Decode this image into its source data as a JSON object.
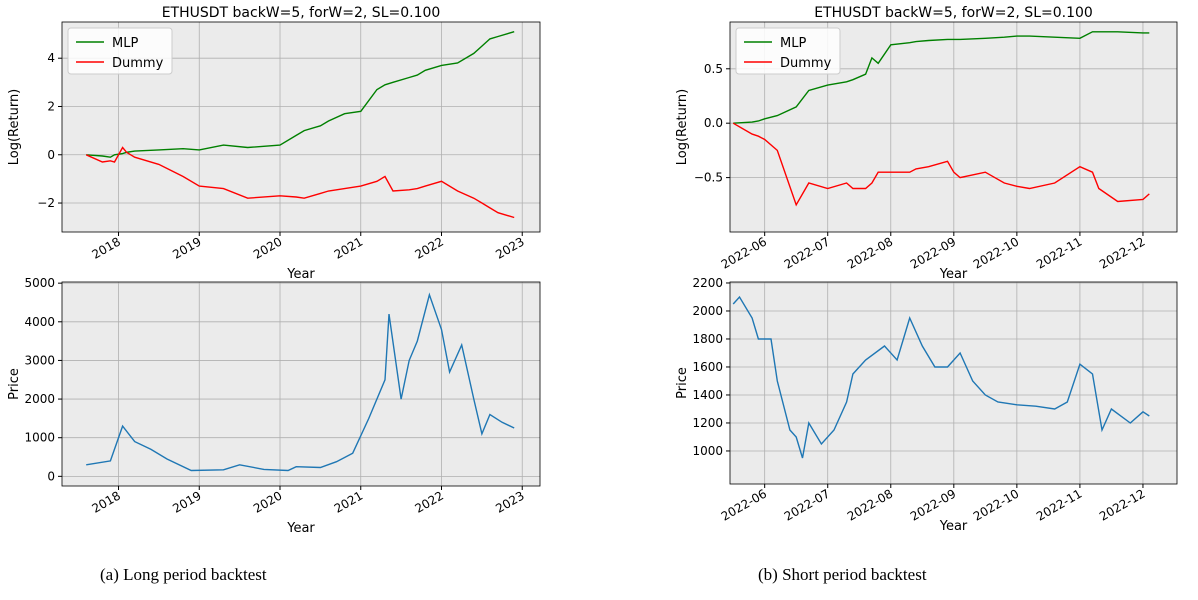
{
  "chart_data": [
    {
      "type": "line",
      "title": "ETHUSDT backW=5, forW=2, SL=0.100",
      "xlabel": "Year",
      "ylabel": "Log(Return)",
      "x": [
        2017.6,
        2017.8,
        2017.9,
        2017.95,
        2018.05,
        2018.1,
        2018.2,
        2018.5,
        2018.8,
        2019,
        2019.3,
        2019.6,
        2020,
        2020.2,
        2020.3,
        2020.5,
        2020.6,
        2020.8,
        2021,
        2021.2,
        2021.3,
        2021.4,
        2021.6,
        2021.7,
        2021.8,
        2022,
        2022.2,
        2022.4,
        2022.5,
        2022.6,
        2022.7,
        2022.9
      ],
      "series": [
        {
          "name": "MLP",
          "color": "#008000",
          "values": [
            0,
            -0.05,
            -0.1,
            0,
            0.05,
            0.1,
            0.15,
            0.2,
            0.25,
            0.2,
            0.4,
            0.3,
            0.4,
            0.8,
            1.0,
            1.2,
            1.4,
            1.7,
            1.8,
            2.7,
            2.9,
            3.0,
            3.2,
            3.3,
            3.5,
            3.7,
            3.8,
            4.2,
            4.5,
            4.8,
            4.9,
            5.1
          ]
        },
        {
          "name": "Dummy",
          "color": "#ff0000",
          "values": [
            0,
            -0.3,
            -0.25,
            -0.3,
            0.3,
            0.1,
            -0.1,
            -0.4,
            -0.9,
            -1.3,
            -1.4,
            -1.8,
            -1.7,
            -1.75,
            -1.8,
            -1.6,
            -1.5,
            -1.4,
            -1.3,
            -1.1,
            -0.9,
            -1.5,
            -1.45,
            -1.4,
            -1.3,
            -1.1,
            -1.5,
            -1.8,
            -2.0,
            -2.2,
            -2.4,
            -2.6
          ]
        }
      ],
      "xlim": [
        2017.3,
        2023.22
      ],
      "ylim": [
        -3.2,
        5.5
      ],
      "xticks": [
        2018,
        2019,
        2020,
        2021,
        2022,
        2023
      ],
      "yticks": [
        {
          "value": -2,
          "label": "−2"
        },
        0,
        2,
        4
      ],
      "grid": true,
      "legend": "upper-left"
    },
    {
      "type": "line",
      "xlabel": "Year",
      "ylabel": "Price",
      "x": [
        2017.6,
        2017.9,
        2018.05,
        2018.2,
        2018.4,
        2018.6,
        2018.9,
        2019.3,
        2019.5,
        2019.8,
        2020.1,
        2020.2,
        2020.5,
        2020.7,
        2020.9,
        2021.1,
        2021.3,
        2021.35,
        2021.5,
        2021.6,
        2021.7,
        2021.85,
        2022,
        2022.1,
        2022.25,
        2022.4,
        2022.5,
        2022.6,
        2022.75,
        2022.9
      ],
      "series": [
        {
          "name": "Price",
          "color": "#1f77b4",
          "values": [
            300,
            400,
            1300,
            900,
            700,
            450,
            150,
            170,
            300,
            180,
            150,
            250,
            230,
            380,
            600,
            1500,
            2500,
            4200,
            2000,
            3000,
            3500,
            4700,
            3800,
            2700,
            3400,
            2000,
            1100,
            1600,
            1400,
            1250
          ]
        }
      ],
      "xlim": [
        2017.3,
        2023.22
      ],
      "ylim": [
        -250,
        5030
      ],
      "xticks": [
        2018,
        2019,
        2020,
        2021,
        2022,
        2023
      ],
      "yticks": [
        0,
        1000,
        2000,
        3000,
        4000,
        5000
      ],
      "grid": true
    },
    {
      "type": "line",
      "title": "ETHUSDT backW=5, forW=2, SL=0.100",
      "xlabel": "Year",
      "ylabel": "Log(Return)",
      "x": [
        5.5,
        5.8,
        5.9,
        6.0,
        6.2,
        6.5,
        6.7,
        7.0,
        7.3,
        7.4,
        7.6,
        7.7,
        7.8,
        8.0,
        8.3,
        8.4,
        8.6,
        8.9,
        9.0,
        9.1,
        9.5,
        9.8,
        10.0,
        10.2,
        10.6,
        11.0,
        11.2,
        11.3,
        11.6,
        12.0,
        12.1
      ],
      "series": [
        {
          "name": "MLP",
          "color": "#008000",
          "values": [
            0,
            0.01,
            0.02,
            0.04,
            0.07,
            0.15,
            0.3,
            0.35,
            0.38,
            0.4,
            0.45,
            0.6,
            0.55,
            0.72,
            0.74,
            0.75,
            0.76,
            0.77,
            0.77,
            0.77,
            0.78,
            0.79,
            0.8,
            0.8,
            0.79,
            0.78,
            0.84,
            0.84,
            0.84,
            0.83,
            0.83
          ]
        },
        {
          "name": "Dummy",
          "color": "#ff0000",
          "values": [
            0,
            -0.1,
            -0.12,
            -0.15,
            -0.25,
            -0.75,
            -0.55,
            -0.6,
            -0.55,
            -0.6,
            -0.6,
            -0.55,
            -0.45,
            -0.45,
            -0.45,
            -0.42,
            -0.4,
            -0.35,
            -0.45,
            -0.5,
            -0.45,
            -0.55,
            -0.58,
            -0.6,
            -0.55,
            -0.4,
            -0.45,
            -0.6,
            -0.72,
            -0.7,
            -0.65
          ]
        }
      ],
      "xlim": [
        5.45,
        12.54
      ],
      "ylim": [
        -1.0,
        0.93
      ],
      "xticks": [
        {
          "value": 6,
          "label": "2022-06"
        },
        {
          "value": 7,
          "label": "2022-07"
        },
        {
          "value": 8,
          "label": "2022-08"
        },
        {
          "value": 9,
          "label": "2022-09"
        },
        {
          "value": 10,
          "label": "2022-10"
        },
        {
          "value": 11,
          "label": "2022-11"
        },
        {
          "value": 12,
          "label": "2022-12"
        }
      ],
      "yticks": [
        {
          "value": -0.5,
          "label": "−0.5"
        },
        {
          "value": 0,
          "label": "0.0"
        },
        0.5
      ],
      "grid": true,
      "legend": "upper-left"
    },
    {
      "type": "line",
      "xlabel": "Year",
      "ylabel": "Price",
      "x": [
        5.5,
        5.6,
        5.8,
        5.9,
        6.1,
        6.2,
        6.4,
        6.5,
        6.6,
        6.7,
        6.9,
        7.1,
        7.3,
        7.4,
        7.6,
        7.9,
        8.1,
        8.3,
        8.5,
        8.7,
        8.9,
        9.1,
        9.3,
        9.5,
        9.7,
        10.0,
        10.3,
        10.6,
        10.8,
        11.0,
        11.2,
        11.35,
        11.5,
        11.8,
        12.0,
        12.1
      ],
      "series": [
        {
          "name": "Price",
          "color": "#1f77b4",
          "values": [
            2050,
            2100,
            1950,
            1800,
            1800,
            1500,
            1150,
            1100,
            950,
            1200,
            1050,
            1150,
            1350,
            1550,
            1650,
            1750,
            1650,
            1950,
            1750,
            1600,
            1600,
            1700,
            1500,
            1400,
            1350,
            1330,
            1320,
            1300,
            1350,
            1620,
            1550,
            1150,
            1300,
            1200,
            1280,
            1250
          ]
        }
      ],
      "xlim": [
        5.45,
        12.54
      ],
      "ylim": [
        764,
        2207
      ],
      "xticks": [
        {
          "value": 6,
          "label": "2022-06"
        },
        {
          "value": 7,
          "label": "2022-07"
        },
        {
          "value": 8,
          "label": "2022-08"
        },
        {
          "value": 9,
          "label": "2022-09"
        },
        {
          "value": 10,
          "label": "2022-10"
        },
        {
          "value": 11,
          "label": "2022-11"
        },
        {
          "value": 12,
          "label": "2022-12"
        }
      ],
      "yticks": [
        1000,
        1200,
        1400,
        1600,
        1800,
        2000,
        2200
      ],
      "grid": true
    }
  ],
  "captions": [
    "(a) Long period backtest",
    "(b) Short period backtest"
  ]
}
